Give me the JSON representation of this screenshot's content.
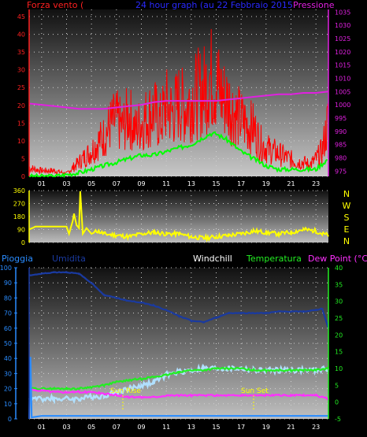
{
  "header": {
    "title": "24 hour graph (au  22 Febbraio 2015",
    "left_label": "Forza vento (",
    "right_label": "Pressione",
    "colors": {
      "title": "#2a2aff",
      "left": "#ff2020",
      "right": "#e020e0"
    }
  },
  "panel_bottom_header": {
    "pioggia": "Pioggia",
    "umidita": "Umidita",
    "windchill": "Windchill",
    "temperatura": "Temperatura",
    "dewpoint": "Dew Point (°C)",
    "colors": {
      "pioggia": "#2a8cff",
      "umidita": "#1a3aa0",
      "windchill": "#ffffff",
      "temperatura": "#22ee22",
      "dewpoint": "#ff30ff"
    }
  },
  "annotations": {
    "sunrise": "Sun Rise",
    "sunset": "Sun Set",
    "color": "#ffff00"
  },
  "x_ticks": [
    "01",
    "03",
    "05",
    "07",
    "09",
    "11",
    "13",
    "15",
    "17",
    "19",
    "21",
    "23"
  ],
  "compass": [
    "N",
    "W",
    "S",
    "E",
    "N"
  ],
  "chart_data": [
    {
      "type": "line",
      "name": "wind_pressure",
      "ylabel_left": "Forza vento",
      "ylabel_right": "Pressione",
      "y_left_ticks": [
        0,
        5,
        10,
        15,
        20,
        25,
        30,
        35,
        40,
        45
      ],
      "y_right_ticks": [
        975,
        980,
        985,
        990,
        995,
        1000,
        1005,
        1010,
        1015,
        1020,
        1025,
        1030,
        1035
      ],
      "ylim_left": [
        0,
        47
      ],
      "ylim_right": [
        973,
        1036
      ],
      "grid": true,
      "series": [
        {
          "key": "wind_gust",
          "color": "#ff0000",
          "x": [
            0,
            1,
            2,
            3,
            3.5,
            4,
            5,
            5.5,
            6,
            6.5,
            7,
            7.5,
            8,
            8.5,
            9,
            9.5,
            10,
            10.5,
            11,
            11.5,
            12,
            12.5,
            13,
            13.5,
            14,
            14.5,
            15,
            15.5,
            16,
            16.5,
            17,
            17.5,
            18,
            18.5,
            19,
            19.5,
            20,
            20.5,
            21,
            21.5,
            22,
            22.5,
            23,
            23.5,
            24
          ],
          "values": [
            3,
            2,
            2,
            1,
            3,
            5,
            9,
            12,
            14,
            18,
            20,
            17,
            22,
            16,
            19,
            21,
            23,
            19,
            25,
            22,
            26,
            24,
            27,
            29,
            30,
            35,
            33,
            28,
            26,
            22,
            20,
            18,
            17,
            12,
            10,
            9,
            8,
            7,
            6,
            5,
            5,
            4,
            6,
            9,
            20
          ]
        },
        {
          "key": "wind_avg",
          "color": "#00ff00",
          "x": [
            0,
            2,
            4,
            5,
            6,
            7,
            8,
            9,
            10,
            11,
            12,
            13,
            14,
            14.5,
            15,
            15.5,
            16,
            17,
            18,
            19,
            20,
            21,
            22,
            23,
            24
          ],
          "values": [
            0,
            0,
            1,
            2,
            3,
            4,
            5,
            6,
            6,
            7,
            8,
            9,
            11,
            12,
            12,
            11,
            10,
            7,
            5,
            3,
            2,
            2,
            2,
            2,
            5
          ]
        },
        {
          "key": "pressione",
          "color": "#e020e0",
          "x": [
            0,
            1,
            2,
            3,
            4,
            5,
            6,
            7,
            8,
            9,
            10,
            11,
            12,
            13,
            14,
            15,
            16,
            17,
            18,
            19,
            20,
            21,
            22,
            23,
            24
          ],
          "values": [
            1000.5,
            1000,
            999.5,
            999,
            998.5,
            998.5,
            998.5,
            999,
            999.5,
            1000,
            1001,
            1001.5,
            1001.5,
            1001.5,
            1001.5,
            1001.5,
            1002,
            1002.5,
            1003,
            1003.5,
            1004,
            1004,
            1004.5,
            1004.5,
            1005
          ]
        }
      ]
    },
    {
      "type": "line",
      "name": "wind_direction",
      "y_ticks": [
        0,
        90,
        180,
        270,
        360
      ],
      "ylim": [
        0,
        360
      ],
      "grid": true,
      "series": [
        {
          "key": "direzione",
          "color": "#ffff00",
          "x": [
            0,
            0.5,
            1,
            2,
            3,
            3.2,
            3.5,
            3.6,
            3.8,
            4,
            4.1,
            4.3,
            4.6,
            5,
            5.5,
            6,
            7,
            8,
            9,
            10,
            11,
            12,
            13,
            14,
            15,
            16,
            17,
            18,
            19,
            20,
            21,
            22,
            23,
            23.5,
            24
          ],
          "values": [
            90,
            110,
            110,
            110,
            110,
            60,
            150,
            200,
            120,
            100,
            355,
            60,
            100,
            60,
            80,
            60,
            50,
            40,
            60,
            70,
            60,
            60,
            40,
            30,
            40,
            50,
            60,
            80,
            70,
            60,
            70,
            90,
            80,
            60,
            50
          ]
        }
      ]
    },
    {
      "type": "line",
      "name": "temperature_humidity",
      "y_left_ticks": [
        0,
        10,
        20,
        30,
        40,
        50,
        60,
        70,
        80,
        90,
        100
      ],
      "y_right_ticks": [
        -5,
        0,
        5,
        10,
        15,
        20,
        25,
        30,
        35,
        40
      ],
      "ylim_left": [
        0,
        100
      ],
      "ylim_right": [
        -5,
        40
      ],
      "grid": true,
      "series": [
        {
          "key": "umidita",
          "color": "#1a3aa0",
          "x": [
            0,
            1,
            2,
            3,
            4,
            5,
            6,
            7,
            8,
            9,
            10,
            11,
            12,
            13,
            14,
            15,
            16,
            17,
            18,
            19,
            20,
            21,
            22,
            23,
            23.5,
            24
          ],
          "values": [
            95,
            96,
            97,
            97,
            96,
            90,
            82,
            80,
            78,
            77,
            75,
            72,
            68,
            65,
            64,
            67,
            70,
            70,
            70,
            70,
            71,
            71,
            71,
            72,
            73,
            60
          ]
        },
        {
          "key": "windchill",
          "color": "#b0e0ff",
          "x": [
            0,
            2,
            4,
            5,
            6,
            7,
            8,
            9,
            10,
            11,
            12,
            13,
            14,
            15,
            16,
            17,
            18,
            19,
            20,
            21,
            22,
            23,
            24
          ],
          "values": [
            1,
            1,
            1,
            1.5,
            2,
            3,
            4,
            5,
            6,
            8,
            9,
            9.5,
            10,
            10,
            10,
            10,
            9.5,
            9.5,
            9.5,
            9.5,
            9.5,
            9.5,
            10
          ]
        },
        {
          "key": "temperatura",
          "color": "#22ee22",
          "x": [
            0,
            1,
            2,
            3,
            4,
            5,
            6,
            7,
            8,
            9,
            10,
            11,
            12,
            13,
            14,
            15,
            16,
            17,
            18,
            19,
            20,
            21,
            22,
            23,
            24
          ],
          "values": [
            4,
            4,
            4,
            4,
            4,
            4.5,
            5,
            6,
            6.5,
            7,
            7.5,
            8,
            9,
            9.5,
            9.5,
            10,
            10,
            10,
            9.5,
            9.5,
            9.5,
            9.5,
            9.5,
            9.5,
            10
          ]
        },
        {
          "key": "dewpoint",
          "color": "#ff30ff",
          "x": [
            0,
            1,
            2,
            3,
            4,
            5,
            6,
            7,
            8,
            9,
            10,
            11,
            12,
            13,
            14,
            15,
            16,
            17,
            18,
            19,
            20,
            21,
            22,
            23,
            24
          ],
          "values": [
            3.5,
            3.5,
            3,
            3,
            3,
            3,
            2.5,
            2,
            1.5,
            1.5,
            1.5,
            2,
            2,
            2,
            2,
            2,
            2,
            2,
            2,
            2,
            2,
            2,
            2,
            2,
            1
          ]
        },
        {
          "key": "pioggia",
          "color": "#2a8cff",
          "x": [
            0,
            0.1,
            0.2,
            1,
            2,
            4,
            8,
            12,
            16,
            20,
            24
          ],
          "values": [
            0,
            41,
            1,
            2,
            2,
            2,
            2,
            2,
            2,
            2,
            2
          ]
        }
      ]
    }
  ]
}
